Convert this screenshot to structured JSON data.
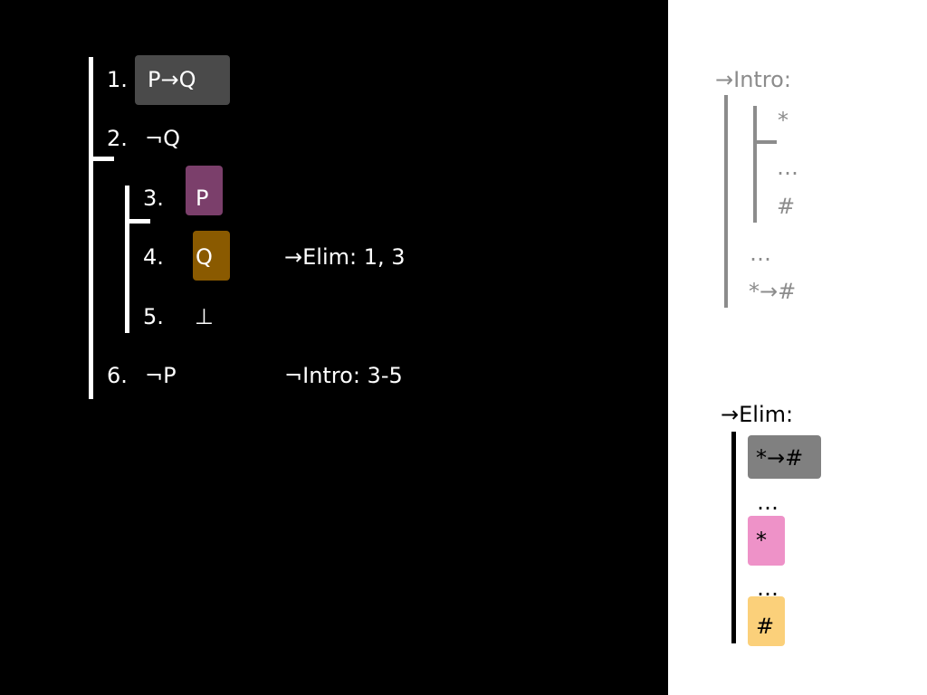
{
  "proof": {
    "lines": [
      {
        "num": "1.",
        "formula": "P→Q",
        "justification": ""
      },
      {
        "num": "2.",
        "formula": "¬Q",
        "justification": ""
      },
      {
        "num": "3.",
        "formula": "P",
        "justification": ""
      },
      {
        "num": "4.",
        "formula": "Q",
        "justification": "→Elim: 1, 3"
      },
      {
        "num": "5.",
        "formula": "⊥",
        "justification": ""
      },
      {
        "num": "6.",
        "formula": "¬P",
        "justification": "¬Intro: 3-5"
      }
    ]
  },
  "intro_rule": {
    "title": "→Intro:",
    "assumption": "*",
    "dots_inner": "…",
    "inner_result": "#",
    "dots_outer": "…",
    "conclusion": "*→#"
  },
  "elim_rule": {
    "title": "→Elim:",
    "premise_conditional": "*→#",
    "dots_1": "…",
    "premise_antecedent": "*",
    "dots_2": "…",
    "conclusion": "#"
  },
  "colors": {
    "background_left": "#000000",
    "background_right": "#ffffff",
    "highlight_conditional": "#4a4a4a",
    "highlight_p": "#7b3f6b",
    "highlight_q": "#8a5a00",
    "rule_gray": "#8c8c8c",
    "elim_conditional_box": "#808080",
    "elim_antecedent_box": "#ee92c8",
    "elim_conclusion_box": "#fbd07a"
  }
}
